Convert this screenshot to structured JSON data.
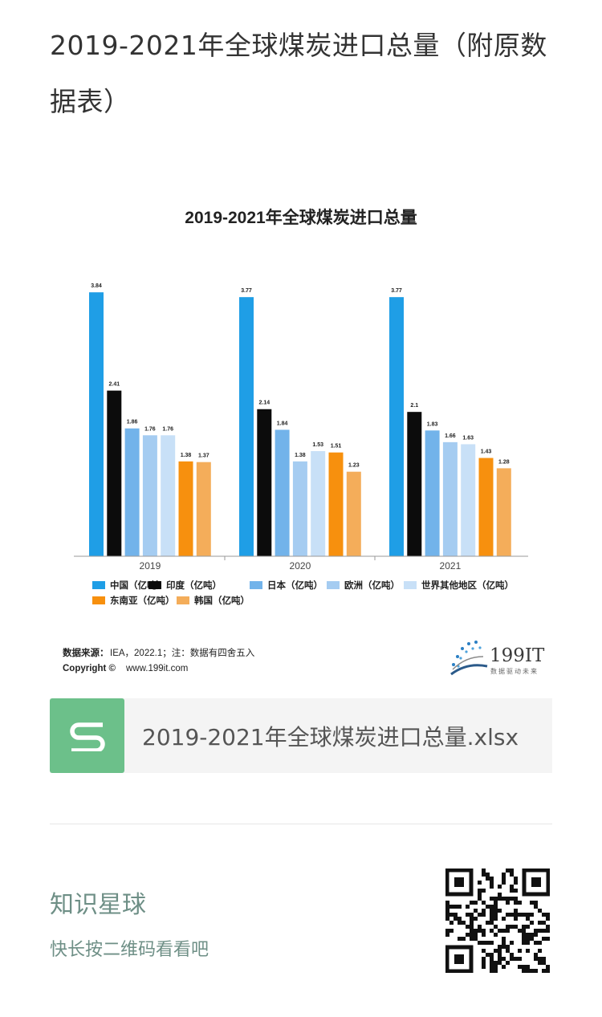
{
  "page": {
    "title": "2019-2021年全球煤炭进口总量（附原数据表）"
  },
  "chart_data": {
    "type": "bar",
    "title": "2019-2021年全球煤炭进口总量",
    "categories": [
      "2019",
      "2020",
      "2021"
    ],
    "series": [
      {
        "name": "中国（亿吨）",
        "color": "#1f9ee6",
        "values": [
          3.84,
          3.77,
          3.77
        ],
        "labels": [
          "3.84",
          "3.77",
          "3.77"
        ]
      },
      {
        "name": "印度（亿吨）",
        "color": "#0c0c0c",
        "values": [
          2.41,
          2.14,
          2.1
        ],
        "labels": [
          "2.41",
          "2.14",
          "2.1"
        ]
      },
      {
        "name": "日本（亿吨）",
        "color": "#72b3ea",
        "values": [
          1.86,
          1.84,
          1.83
        ],
        "labels": [
          "1.86",
          "1.84",
          "1.83"
        ]
      },
      {
        "name": "欧洲（亿吨）",
        "color": "#a5ccf1",
        "values": [
          1.76,
          1.38,
          1.66
        ],
        "labels": [
          "1.76",
          "1.38",
          "1.66"
        ]
      },
      {
        "name": "世界其他地区（亿吨）",
        "color": "#c8e0f7",
        "values": [
          1.76,
          1.53,
          1.63
        ],
        "labels": [
          "1.76",
          "1.53",
          "1.63"
        ]
      },
      {
        "name": "东南亚（亿吨）",
        "color": "#f7900e",
        "values": [
          1.38,
          1.51,
          1.43
        ],
        "labels": [
          "1.38",
          "1.51",
          "1.43"
        ]
      },
      {
        "name": "韩国（亿吨）",
        "color": "#f4ad5a",
        "values": [
          1.37,
          1.23,
          1.28
        ],
        "labels": [
          "1.37",
          "1.23",
          "1.28"
        ]
      }
    ],
    "ylim": [
      0,
      4
    ],
    "legend": "bottom-left",
    "source_label": "数据来源：",
    "source_text": "IEA，2022.1；注：数据有四舍五入",
    "copyright_label": "Copyright ©",
    "copyright_text": "www.199it.com",
    "logo_text": "199IT",
    "logo_sub": "数据驱动未来"
  },
  "attachment": {
    "file_name": "2019-2021年全球煤炭进口总量.xlsx",
    "icon": "spreadsheet-s-icon",
    "icon_color": "#6cc08a"
  },
  "footer": {
    "title": "知识星球",
    "subtitle": "快长按二维码看看吧"
  }
}
